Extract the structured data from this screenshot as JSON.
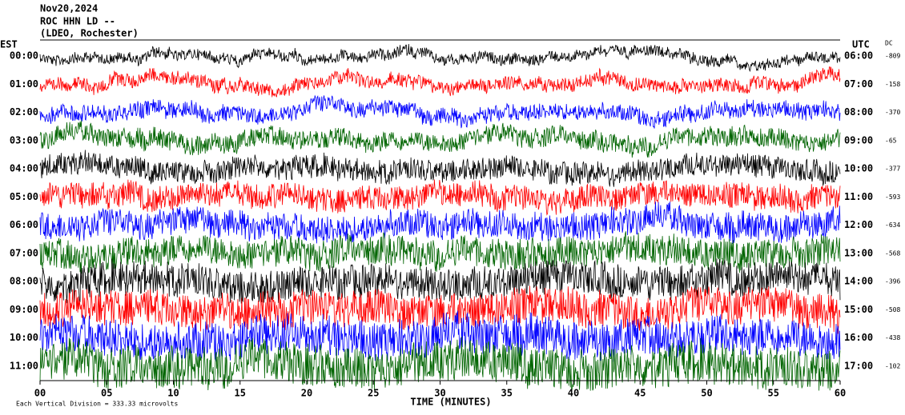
{
  "chart_data": {
    "type": "helicorder",
    "title_lines": [
      "Nov20,2024",
      "ROC HHN LD --",
      "(LDEO, Rochester)"
    ],
    "left_axis_label": "EST",
    "right_axis_label": "UTC",
    "dc_label": "DC",
    "categories": [
      "00:00",
      "01:00",
      "02:00",
      "03:00",
      "04:00",
      "05:00",
      "06:00",
      "07:00",
      "08:00",
      "09:00",
      "10:00",
      "11:00"
    ],
    "utc_labels": [
      "06:00",
      "07:00",
      "08:00",
      "09:00",
      "10:00",
      "11:00",
      "12:00",
      "13:00",
      "14:00",
      "15:00",
      "16:00",
      "17:00"
    ],
    "dc_values": [
      -809,
      -158,
      -370,
      -65,
      -377,
      -593,
      -634,
      -568,
      -396,
      -508,
      -438,
      -102
    ],
    "series_colors": [
      "#000000",
      "#ff0000",
      "#0000ff",
      "#006400"
    ],
    "xlabel": "TIME (MINUTES)",
    "xlim": [
      0,
      60
    ],
    "xticks": [
      {
        "value": 0,
        "label": "00"
      },
      {
        "value": 5,
        "label": "05"
      },
      {
        "value": 10,
        "label": "10"
      },
      {
        "value": 15,
        "label": "15"
      },
      {
        "value": 20,
        "label": "20"
      },
      {
        "value": 25,
        "label": "25"
      },
      {
        "value": 30,
        "label": "30"
      },
      {
        "value": 35,
        "label": "35"
      },
      {
        "value": 40,
        "label": "40"
      },
      {
        "value": 45,
        "label": "45"
      },
      {
        "value": 50,
        "label": "50"
      },
      {
        "value": 55,
        "label": "55"
      },
      {
        "value": 60,
        "label": "60"
      }
    ],
    "footnote": "Each Vertical Division =  333.33 microvolts"
  }
}
